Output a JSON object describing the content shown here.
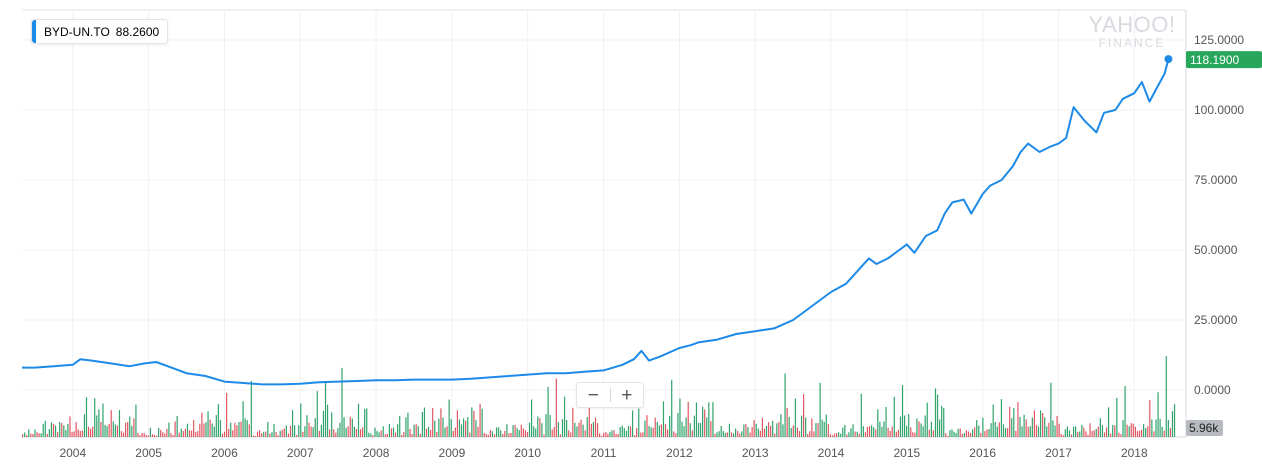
{
  "legend": {
    "symbol": "BYD-UN.TO",
    "value": "88.2600",
    "color": "#1e8ae8"
  },
  "logo": {
    "line1": "YAHOO!",
    "line2": "FINANCE"
  },
  "zoom": {
    "minus": "−",
    "plus": "+"
  },
  "colors": {
    "line": "#1e8ae8",
    "price_tag": "#27a65c",
    "volume_up": "#2fa36b",
    "volume_down": "#e05660",
    "volume_tag": "#b7babf"
  },
  "chart_data": {
    "type": "line",
    "series": [
      {
        "x": [
          2003.33,
          2003.5,
          2003.75,
          2004.0,
          2004.1,
          2004.25,
          2004.5,
          2004.75,
          2004.95,
          2005.1,
          2005.3,
          2005.5,
          2005.75,
          2006.0,
          2006.25,
          2006.5,
          2006.75,
          2007.0,
          2007.25,
          2007.5,
          2007.75,
          2008.0,
          2008.25,
          2008.5,
          2008.75,
          2009.0,
          2009.25,
          2009.5,
          2009.75,
          2010.0,
          2010.25,
          2010.5,
          2010.75,
          2011.0,
          2011.25,
          2011.4,
          2011.5,
          2011.6,
          2011.75,
          2012.0,
          2012.15,
          2012.25,
          2012.5,
          2012.75,
          2013.0,
          2013.25,
          2013.5,
          2013.75,
          2014.0,
          2014.2,
          2014.4,
          2014.5,
          2014.6,
          2014.75,
          2014.9,
          2015.0,
          2015.1,
          2015.25,
          2015.4,
          2015.5,
          2015.6,
          2015.75,
          2015.85,
          2016.0,
          2016.1,
          2016.25,
          2016.4,
          2016.5,
          2016.6,
          2016.75,
          2016.9,
          2017.0,
          2017.1,
          2017.2,
          2017.35,
          2017.5,
          2017.6,
          2017.75,
          2017.85,
          2018.0,
          2018.1,
          2018.2,
          2018.3,
          2018.4,
          2018.45
        ],
        "y": [
          8,
          8,
          8.5,
          9,
          11,
          10.5,
          9.5,
          8.5,
          9.5,
          10,
          8,
          6,
          5,
          3,
          2.5,
          2,
          2,
          2.2,
          2.8,
          3,
          3.2,
          3.5,
          3.5,
          3.7,
          3.7,
          3.7,
          4,
          4.5,
          5,
          5.5,
          6,
          6,
          6.5,
          7,
          9,
          11,
          14,
          10.5,
          12,
          15,
          16,
          17,
          18,
          20,
          21,
          22,
          25,
          30,
          35,
          38,
          44,
          47,
          45,
          47,
          50,
          52,
          49,
          55,
          57,
          63,
          67,
          68,
          63,
          70,
          73,
          75,
          80,
          85,
          88,
          85,
          87,
          88,
          90,
          101,
          96,
          92,
          99,
          100,
          104,
          106,
          110,
          103,
          108,
          113,
          118.19
        ]
      }
    ],
    "volume": [
      1.2,
      0.8,
      1.5,
      2.0,
      1.1,
      0.9,
      1.8,
      2.5,
      1.4,
      1.0,
      2.2,
      3.1,
      1.6,
      1.3,
      2.8,
      4.0,
      2.0,
      1.5,
      3.5,
      5.2,
      2.4,
      1.8,
      3.0,
      6.5,
      2.8,
      2.1,
      4.2,
      7.0,
      3.2,
      2.0,
      3.8,
      8.5,
      4.1,
      2.6,
      5.0,
      9.8,
      3.6,
      2.2,
      4.4,
      6.8,
      3.0,
      1.9,
      3.9,
      12.5,
      3.4,
      2.5,
      4.6,
      7.4,
      3.3,
      2.7,
      5.5,
      9.1,
      4.0,
      2.9,
      6.0,
      5.96
    ],
    "y_ticks": [
      "125.0000",
      "100.0000",
      "75.0000",
      "50.0000",
      "25.0000",
      "0.0000"
    ],
    "x_ticks": [
      "2004",
      "2005",
      "2006",
      "2007",
      "2008",
      "2009",
      "2010",
      "2011",
      "2012",
      "2013",
      "2014",
      "2015",
      "2016",
      "2017",
      "2018"
    ],
    "ylim": [
      0,
      125
    ],
    "xlim": [
      2003.33,
      2018.55
    ],
    "last_price": "118.1900",
    "volume_label": "5.96k",
    "grid": true
  }
}
